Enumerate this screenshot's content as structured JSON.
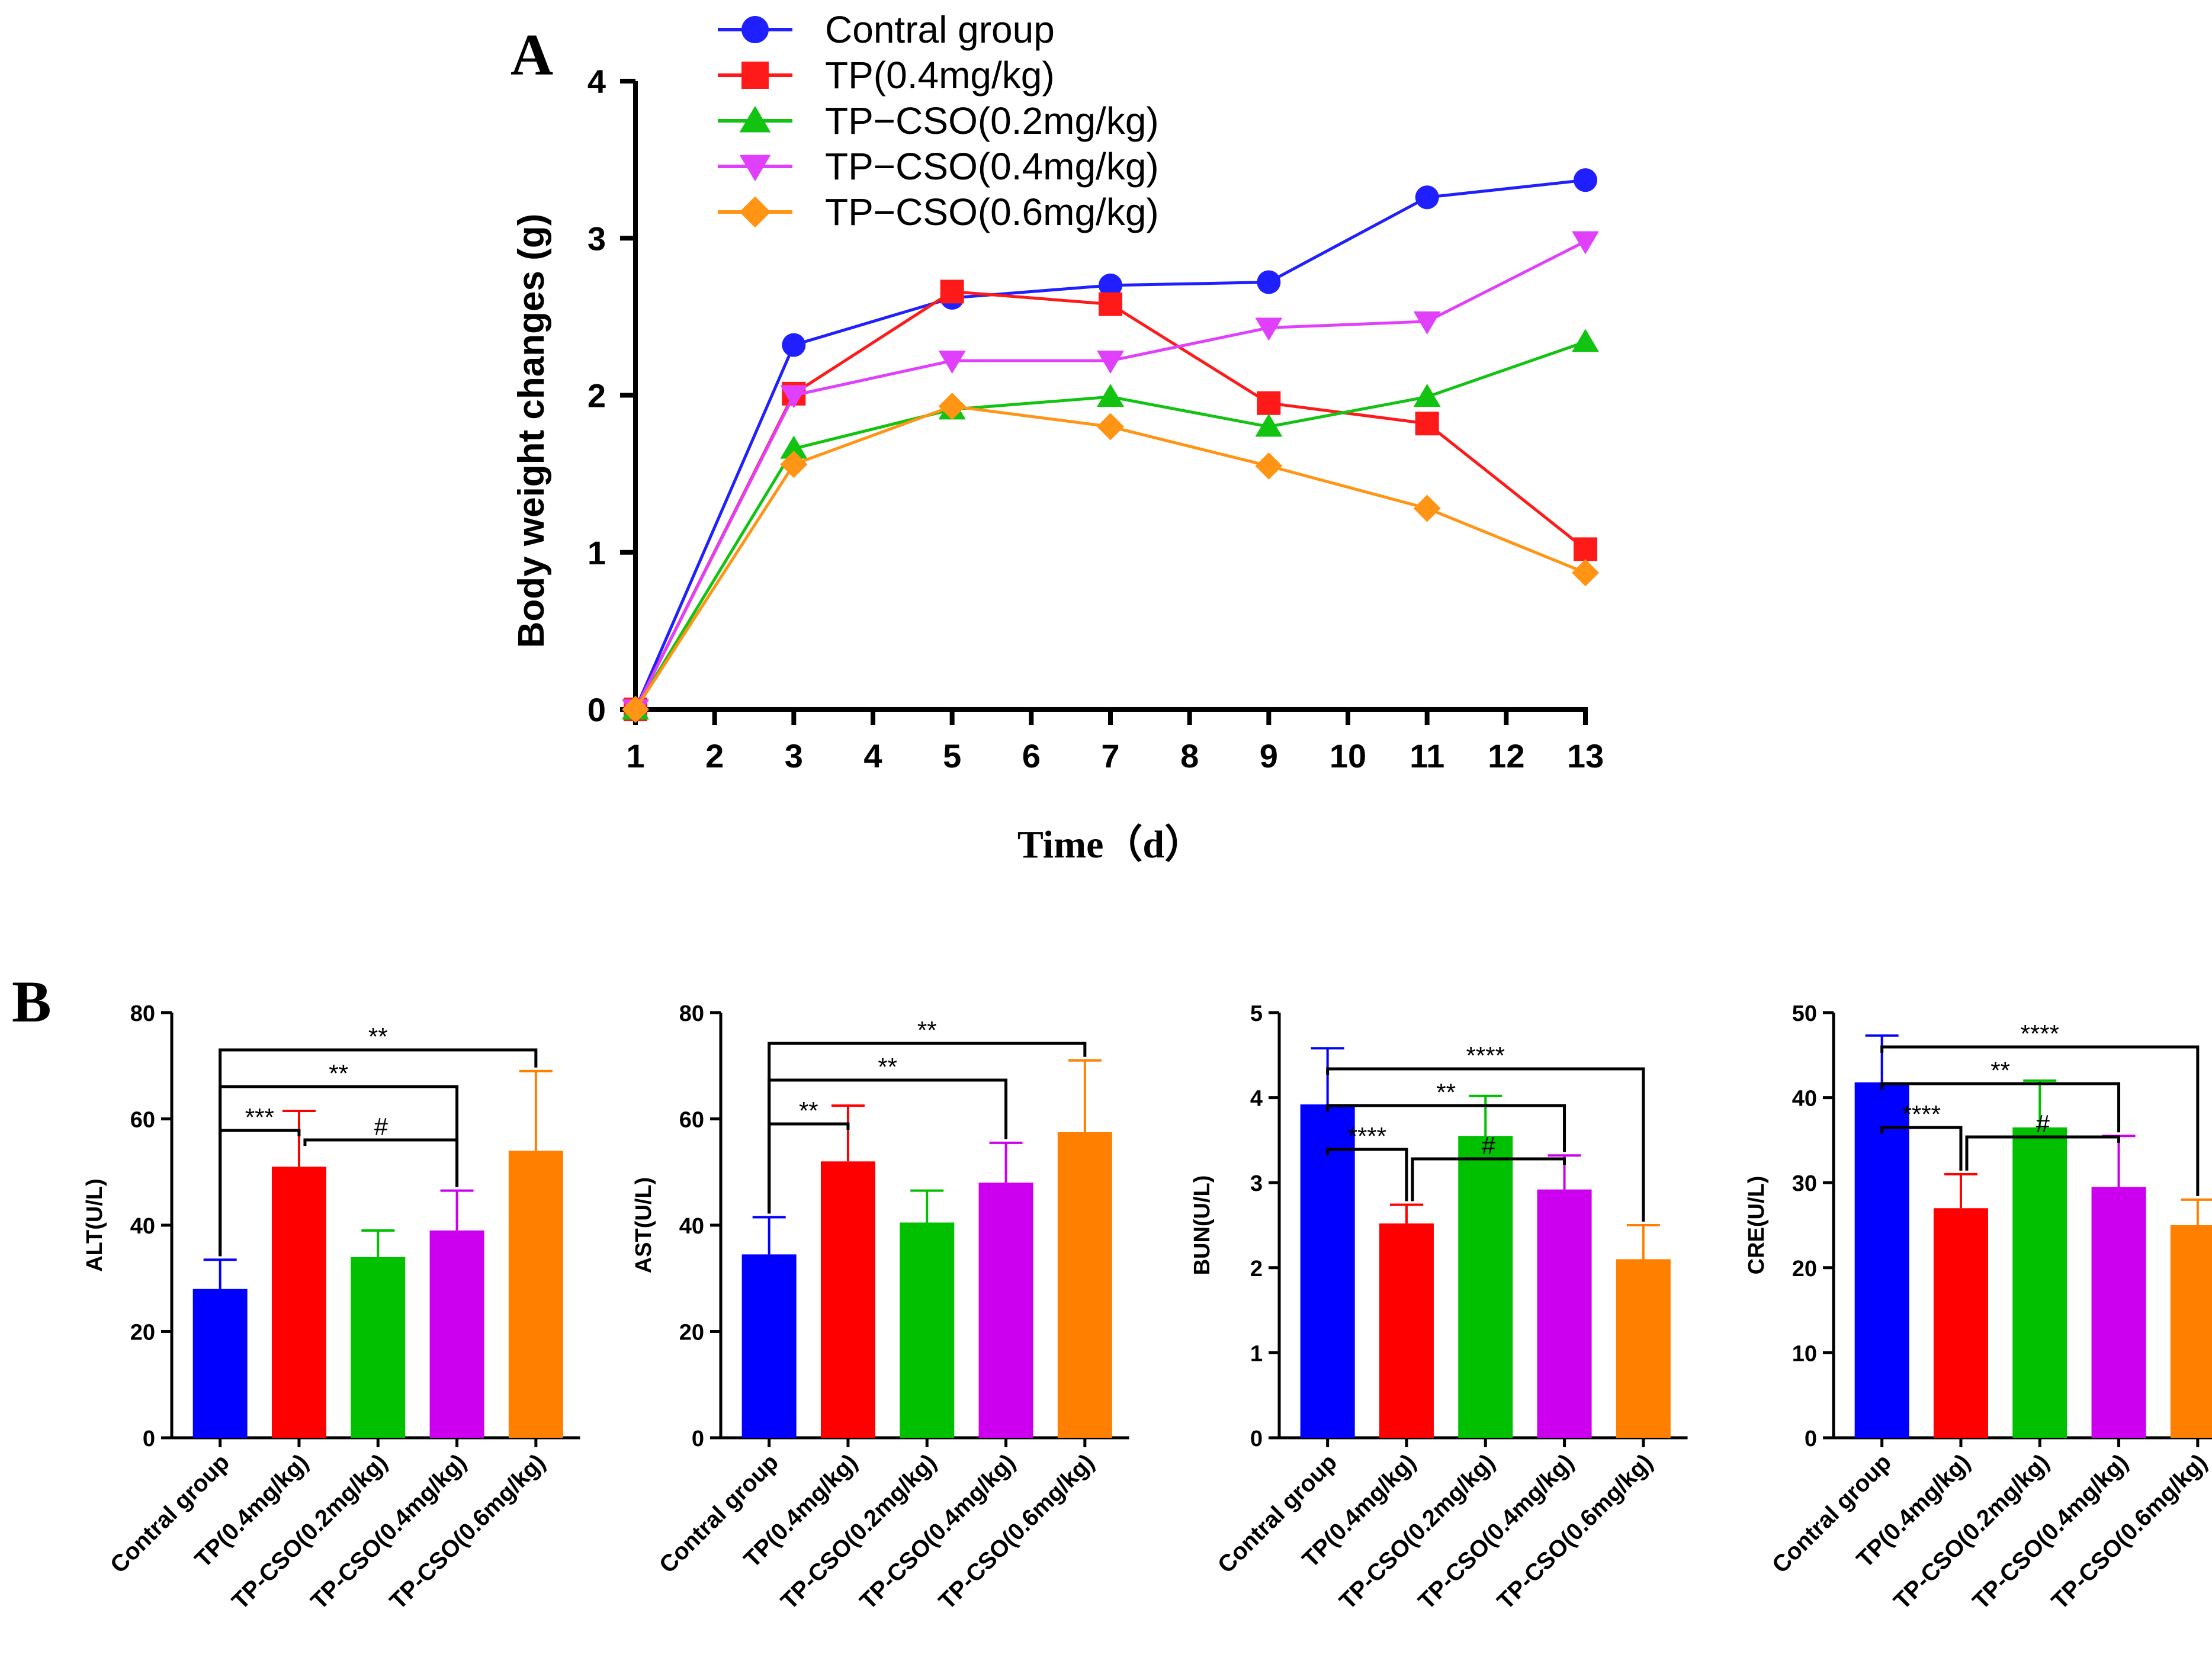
{
  "chart_data": [
    {
      "panel": "A",
      "type": "line",
      "xlabel": "Time（d）",
      "ylabel": "Body weight changes (g)",
      "xlim": [
        1,
        13
      ],
      "ylim": [
        0,
        4
      ],
      "xticks": [
        "1",
        "2",
        "3",
        "4",
        "5",
        "6",
        "7",
        "8",
        "9",
        "10",
        "11",
        "12",
        "13"
      ],
      "yticks": [
        "0",
        "1",
        "2",
        "3",
        "4"
      ],
      "x": [
        1,
        3,
        5,
        7,
        9,
        11,
        13
      ],
      "legend_position": "top",
      "series": [
        {
          "name": "Contral group",
          "color": "#1f1fff",
          "marker": "circle",
          "values": [
            0,
            2.32,
            2.62,
            2.7,
            2.72,
            3.26,
            3.37
          ]
        },
        {
          "name": "TP(0.4mg/kg)",
          "color": "#ff1a1a",
          "marker": "square",
          "values": [
            0,
            2.01,
            2.66,
            2.58,
            1.95,
            1.82,
            1.02
          ]
        },
        {
          "name": "TP−CSO(0.2mg/kg)",
          "color": "#12c312",
          "marker": "triangle-up",
          "values": [
            0,
            1.66,
            1.91,
            1.99,
            1.8,
            1.99,
            2.34
          ]
        },
        {
          "name": "TP−CSO(0.4mg/kg)",
          "color": "#e040fb",
          "marker": "triangle-down",
          "values": [
            0,
            2.0,
            2.22,
            2.22,
            2.43,
            2.47,
            2.98
          ]
        },
        {
          "name": "TP−CSO(0.6mg/kg)",
          "color": "#ff9415",
          "marker": "diamond",
          "values": [
            0,
            1.56,
            1.93,
            1.8,
            1.55,
            1.28,
            0.87
          ]
        }
      ]
    },
    {
      "panel": "B",
      "type": "bar",
      "ylabel": "ALT(U/L)",
      "ylim": [
        0,
        80
      ],
      "yticks": [
        "0",
        "20",
        "40",
        "60",
        "80"
      ],
      "categories": [
        "Contral group",
        "TP(0.4mg/kg)",
        "TP-CSO(0.2mg/kg)",
        "TP-CSO(0.4mg/kg)",
        "TP-CSO(0.6mg/kg)"
      ],
      "colors": [
        "#0000ff",
        "#ff0000",
        "#00c000",
        "#cc00ee",
        "#ff8000"
      ],
      "values": [
        28,
        51,
        34,
        39,
        54
      ],
      "errors": [
        5.5,
        10.5,
        5.0,
        7.5,
        15.0
      ],
      "significance": [
        {
          "from": 0,
          "to": 1,
          "label": "***"
        },
        {
          "from": 1,
          "to": 3,
          "label": "#"
        },
        {
          "from": 0,
          "to": 3,
          "label": "**"
        },
        {
          "from": 0,
          "to": 4,
          "label": "**"
        }
      ]
    },
    {
      "type": "bar",
      "ylabel": "AST(U/L)",
      "ylim": [
        0,
        80
      ],
      "yticks": [
        "0",
        "20",
        "40",
        "60",
        "80"
      ],
      "categories": [
        "Contral group",
        "TP(0.4mg/kg)",
        "TP-CSO(0.2mg/kg)",
        "TP-CSO(0.4mg/kg)",
        "TP-CSO(0.6mg/kg)"
      ],
      "colors": [
        "#0000ff",
        "#ff0000",
        "#00c000",
        "#cc00ee",
        "#ff8000"
      ],
      "values": [
        34.5,
        52,
        40.5,
        48,
        57.5
      ],
      "errors": [
        7.0,
        10.5,
        6.0,
        7.5,
        13.5
      ],
      "significance": [
        {
          "from": 0,
          "to": 1,
          "label": "**"
        },
        {
          "from": 0,
          "to": 3,
          "label": "**"
        },
        {
          "from": 0,
          "to": 4,
          "label": "**"
        }
      ]
    },
    {
      "type": "bar",
      "ylabel": "BUN(U/L)",
      "ylim": [
        0,
        5
      ],
      "yticks": [
        "0",
        "1",
        "2",
        "3",
        "4",
        "5"
      ],
      "categories": [
        "Contral group",
        "TP(0.4mg/kg)",
        "TP-CSO(0.2mg/kg)",
        "TP-CSO(0.4mg/kg)",
        "TP-CSO(0.6mg/kg)"
      ],
      "colors": [
        "#0000ff",
        "#ff0000",
        "#00c000",
        "#cc00ee",
        "#ff8000"
      ],
      "values": [
        3.92,
        2.52,
        3.55,
        2.92,
        2.1
      ],
      "errors": [
        0.66,
        0.22,
        0.47,
        0.4,
        0.4
      ],
      "significance": [
        {
          "from": 0,
          "to": 1,
          "label": "****"
        },
        {
          "from": 1,
          "to": 3,
          "label": "#"
        },
        {
          "from": 0,
          "to": 3,
          "label": "**"
        },
        {
          "from": 0,
          "to": 4,
          "label": "****"
        }
      ]
    },
    {
      "type": "bar",
      "ylabel": "CRE(U/L)",
      "ylim": [
        0,
        50
      ],
      "yticks": [
        "0",
        "10",
        "20",
        "30",
        "40",
        "50"
      ],
      "categories": [
        "Contral group",
        "TP(0.4mg/kg)",
        "TP-CSO(0.2mg/kg)",
        "TP-CSO(0.4mg/kg)",
        "TP-CSO(0.6mg/kg)"
      ],
      "colors": [
        "#0000ff",
        "#ff0000",
        "#00c000",
        "#cc00ee",
        "#ff8000"
      ],
      "values": [
        41.8,
        27,
        36.5,
        29.5,
        25
      ],
      "errors": [
        5.5,
        4.0,
        5.5,
        6.0,
        3.0
      ],
      "significance": [
        {
          "from": 0,
          "to": 1,
          "label": "****"
        },
        {
          "from": 1,
          "to": 3,
          "label": "#"
        },
        {
          "from": 0,
          "to": 3,
          "label": "**"
        },
        {
          "from": 0,
          "to": 4,
          "label": "****"
        }
      ]
    }
  ]
}
